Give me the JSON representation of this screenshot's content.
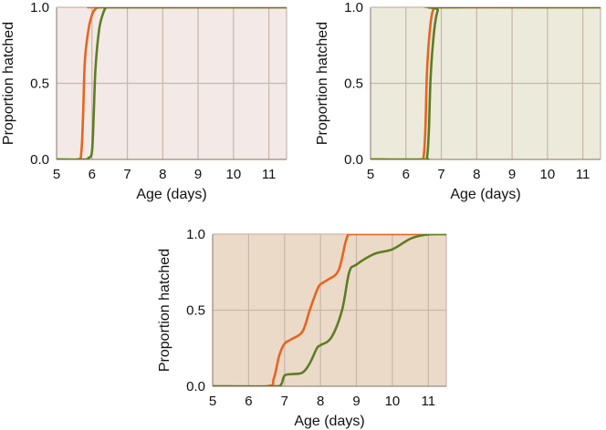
{
  "chart_data": [
    {
      "type": "line",
      "xlabel": "Age (days)",
      "ylabel": "Proportion hatched",
      "xlim": [
        5,
        11.5
      ],
      "ylim": [
        0,
        1
      ],
      "xticks": [
        "5",
        "6",
        "7",
        "8",
        "9",
        "10",
        "11"
      ],
      "yticks": [
        "0.0",
        "0.5",
        "1.0"
      ],
      "background": "#f3e9e7",
      "grid": true,
      "series": [
        {
          "color": "#e8641f",
          "x": [
            5.0,
            5.6,
            5.7,
            5.75,
            5.8,
            5.9,
            6.0,
            6.1,
            6.2,
            6.3,
            11.5
          ],
          "y": [
            0,
            0,
            0.05,
            0.3,
            0.65,
            0.85,
            0.95,
            0.99,
            1.0,
            1.0,
            1.0
          ]
        },
        {
          "color": "#5e7d22",
          "x": [
            5.0,
            5.8,
            5.9,
            6.0,
            6.05,
            6.1,
            6.2,
            6.3,
            6.4,
            6.5,
            11.5
          ],
          "y": [
            0,
            0,
            0.01,
            0.05,
            0.3,
            0.6,
            0.85,
            0.95,
            1.0,
            1.0,
            1.0
          ]
        }
      ]
    },
    {
      "type": "line",
      "xlabel": "Age (days)",
      "ylabel": "Proportion hatched",
      "xlim": [
        5,
        11.5
      ],
      "ylim": [
        0,
        1
      ],
      "xticks": [
        "5",
        "6",
        "7",
        "8",
        "9",
        "10",
        "11"
      ],
      "yticks": [
        "0.0",
        "0.5",
        "1.0"
      ],
      "background": "#eceadb",
      "grid": true,
      "series": [
        {
          "color": "#e8641f",
          "x": [
            5.0,
            6.4,
            6.5,
            6.55,
            6.6,
            6.7,
            6.8,
            6.9,
            11.5
          ],
          "y": [
            0,
            0,
            0.02,
            0.2,
            0.6,
            0.9,
            1.0,
            1.0,
            1.0
          ]
        },
        {
          "color": "#5e7d22",
          "x": [
            5.0,
            6.5,
            6.6,
            6.65,
            6.7,
            6.8,
            6.9,
            7.0,
            11.5
          ],
          "y": [
            0,
            0,
            0.02,
            0.2,
            0.55,
            0.85,
            0.98,
            1.0,
            1.0
          ]
        }
      ]
    },
    {
      "type": "line",
      "xlabel": "Age (days)",
      "ylabel": "Proportion hatched",
      "xlim": [
        5,
        11.5
      ],
      "ylim": [
        0,
        1
      ],
      "xticks": [
        "5",
        "6",
        "7",
        "8",
        "9",
        "10",
        "11"
      ],
      "yticks": [
        "0.0",
        "0.5",
        "1.0"
      ],
      "background": "#ecdac9",
      "grid": true,
      "series": [
        {
          "color": "#e8641f",
          "x": [
            5.0,
            6.5,
            6.7,
            6.85,
            7.0,
            7.2,
            7.5,
            7.7,
            7.9,
            8.0,
            8.2,
            8.5,
            8.7,
            8.8,
            9.0,
            11.5
          ],
          "y": [
            0,
            0,
            0.05,
            0.2,
            0.28,
            0.31,
            0.36,
            0.5,
            0.63,
            0.67,
            0.7,
            0.76,
            0.95,
            1.0,
            1.0,
            1.0
          ]
        },
        {
          "color": "#5e7d22",
          "x": [
            5.0,
            6.7,
            6.9,
            7.0,
            7.2,
            7.5,
            7.7,
            7.9,
            8.0,
            8.3,
            8.6,
            8.8,
            9.0,
            9.5,
            10.0,
            10.5,
            10.9,
            11.2,
            11.5
          ],
          "y": [
            0,
            0,
            0.01,
            0.07,
            0.08,
            0.09,
            0.15,
            0.25,
            0.27,
            0.32,
            0.5,
            0.75,
            0.8,
            0.87,
            0.9,
            0.97,
            0.995,
            1.0,
            1.0
          ]
        }
      ]
    }
  ]
}
